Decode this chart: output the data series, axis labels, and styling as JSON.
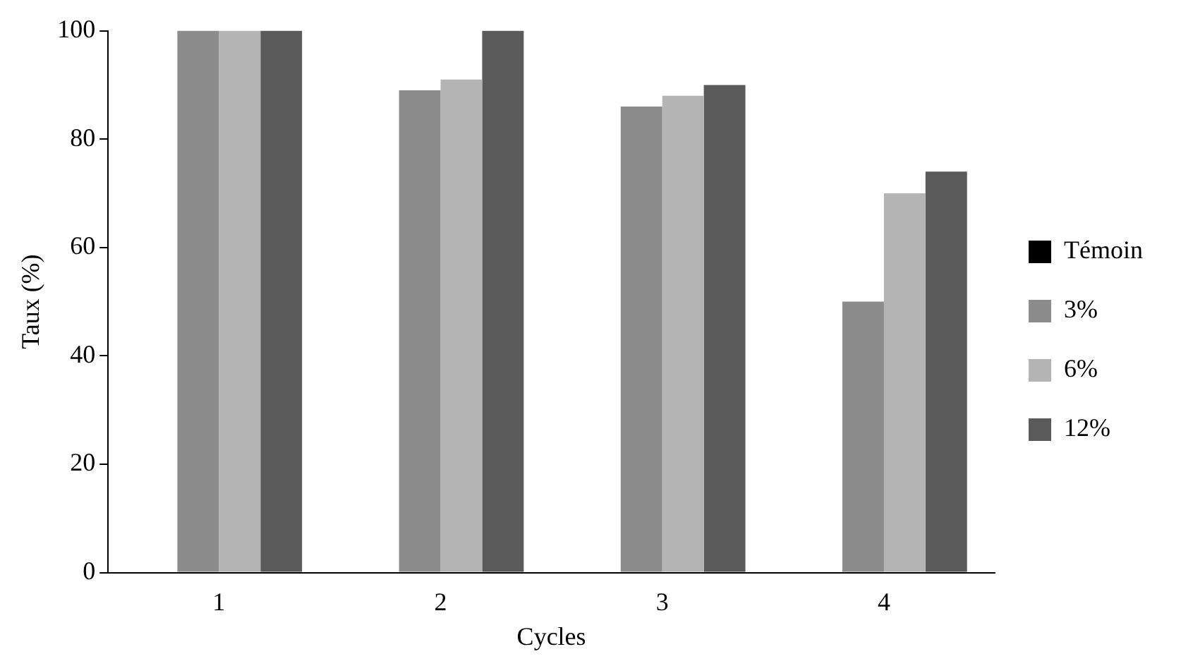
{
  "chart_data": {
    "type": "bar",
    "xlabel": "Cycles",
    "ylabel": "Taux (%)",
    "categories": [
      "1",
      "2",
      "3",
      "4"
    ],
    "series": [
      {
        "name": "Témoin",
        "color": "#000000",
        "values": [
          0,
          0,
          0,
          0
        ]
      },
      {
        "name": "3%",
        "color": "#8c8c8c",
        "values": [
          100,
          89,
          86,
          50
        ]
      },
      {
        "name": "6%",
        "color": "#b4b4b4",
        "values": [
          100,
          91,
          88,
          70
        ]
      },
      {
        "name": "12%",
        "color": "#5a5a5a",
        "values": [
          100,
          100,
          90,
          74
        ]
      }
    ],
    "ylim": [
      0,
      100
    ],
    "yticks": [
      0,
      20,
      40,
      60,
      80,
      100
    ],
    "legend": "right"
  }
}
